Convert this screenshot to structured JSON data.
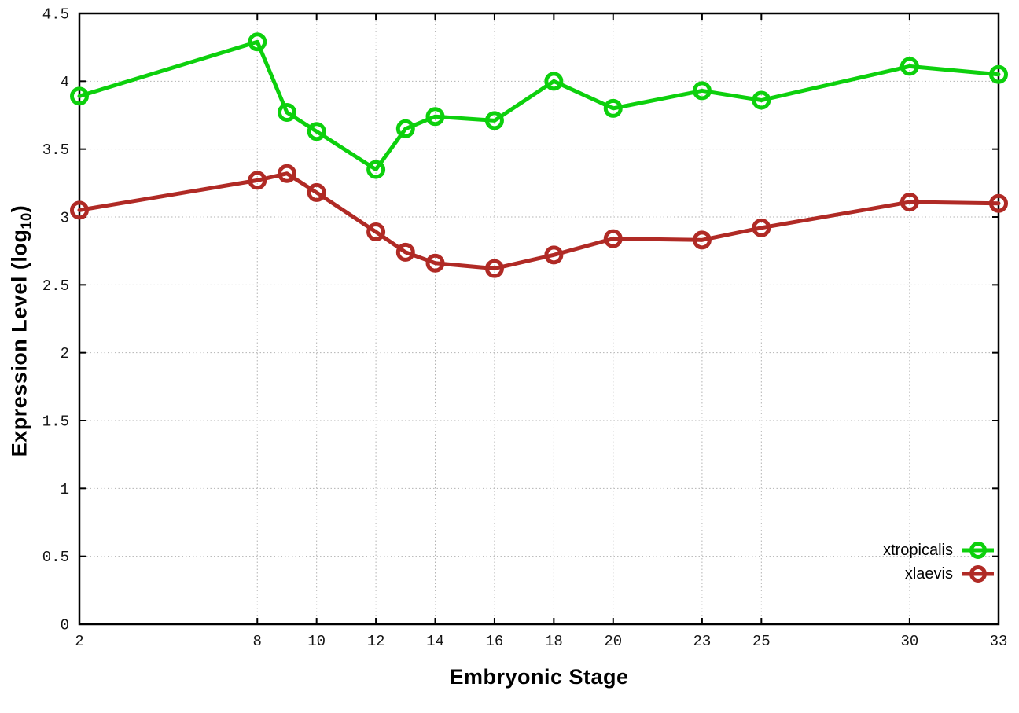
{
  "chart_data": {
    "type": "line",
    "title": "",
    "xlabel": "Embryonic Stage",
    "ylabel": "Expression Level (log10)",
    "ylabel_parts": {
      "pre": "Expression Level (log",
      "sub": "10",
      "post": ")"
    },
    "xlim": [
      2,
      33
    ],
    "ylim": [
      0,
      4.5
    ],
    "grid": true,
    "legend_position": "inside-bottom-right",
    "xticks": [
      2,
      8,
      10,
      12,
      14,
      16,
      18,
      20,
      23,
      25,
      30,
      33
    ],
    "yticks": [
      0,
      0.5,
      1,
      1.5,
      2,
      2.5,
      3,
      3.5,
      4,
      4.5
    ],
    "x": [
      2,
      8,
      9,
      10,
      12,
      13,
      14,
      16,
      18,
      20,
      23,
      25,
      30,
      33
    ],
    "series": [
      {
        "name": "xtropicalis",
        "color": "#0dd00d",
        "values": [
          3.89,
          4.29,
          3.77,
          3.63,
          3.35,
          3.65,
          3.74,
          3.71,
          4.0,
          3.8,
          3.93,
          3.86,
          4.11,
          4.05
        ]
      },
      {
        "name": "xlaevis",
        "color": "#b02a25",
        "values": [
          3.05,
          3.27,
          3.32,
          3.18,
          2.89,
          2.74,
          2.66,
          2.62,
          2.72,
          2.84,
          2.83,
          2.92,
          3.11,
          3.1
        ]
      }
    ]
  }
}
